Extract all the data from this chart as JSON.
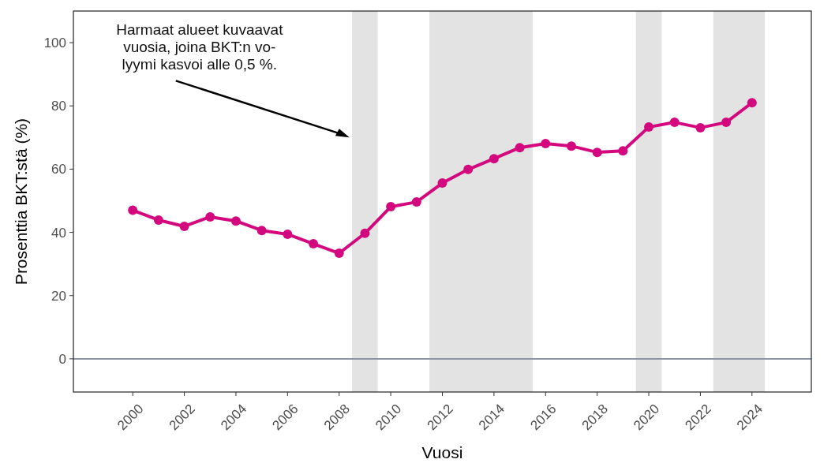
{
  "chart_data": {
    "type": "line",
    "xlabel": "Vuosi",
    "ylabel": "Prosenttia BKT:stä (%)",
    "x": [
      2000,
      2001,
      2002,
      2003,
      2004,
      2005,
      2006,
      2007,
      2008,
      2009,
      2010,
      2011,
      2012,
      2013,
      2014,
      2015,
      2016,
      2017,
      2018,
      2019,
      2020,
      2021,
      2022,
      2023,
      2024
    ],
    "series": [
      {
        "color": "#d4087e",
        "values": [
          47,
          43.9,
          41.9,
          44.9,
          43.6,
          40.6,
          39.4,
          36.4,
          33.4,
          39.7,
          48.1,
          49.6,
          55.6,
          59.9,
          63.3,
          66.8,
          68.1,
          67.3,
          65.3,
          65.8,
          73.3,
          74.8,
          73.1,
          74.8,
          81
        ]
      }
    ],
    "xlim": [
      1997.7,
      2026.3
    ],
    "xticks": [
      2000,
      2002,
      2004,
      2006,
      2008,
      2010,
      2012,
      2014,
      2016,
      2018,
      2020,
      2022,
      2024
    ],
    "ylim": [
      -10.5,
      110
    ],
    "yticks": [
      0,
      20,
      40,
      60,
      80,
      100
    ],
    "bands": [
      {
        "axis": "x",
        "from": 2008.5,
        "to": 2009.5,
        "color": "#e3e3e3"
      },
      {
        "axis": "x",
        "from": 2011.5,
        "to": 2015.5,
        "color": "#e3e3e3"
      },
      {
        "axis": "x",
        "from": 2019.5,
        "to": 2020.5,
        "color": "#e3e3e3"
      },
      {
        "axis": "x",
        "from": 2022.5,
        "to": 2024.5,
        "color": "#e3e3e3"
      }
    ],
    "ref_lines": [
      {
        "axis": "y",
        "value": 0,
        "color": "#8a96a3"
      }
    ],
    "annotations": [
      {
        "text": "Harmaat alueet kuvaavat\nvuosia, joina BKT:n vo-\nlyymi kasvoi alle 0,5 %.",
        "x": 2008.4,
        "y": 70
      }
    ],
    "marker": "circle",
    "line_style": "solid",
    "grid": false
  }
}
